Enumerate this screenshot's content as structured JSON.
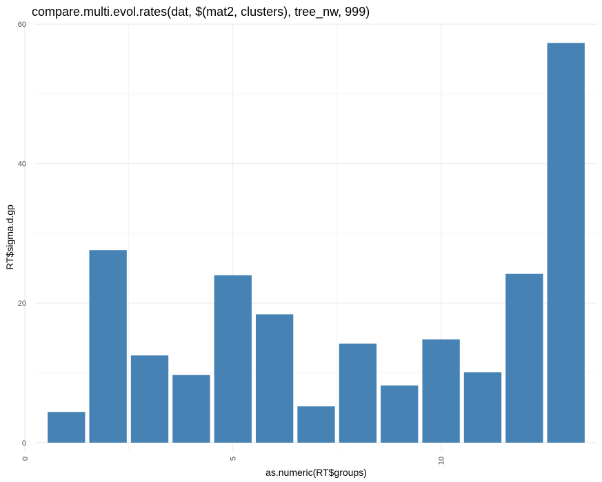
{
  "chart_data": {
    "type": "bar",
    "title": "compare.multi.evol.rates(dat, $(mat2, clusters), tree_nw, 999)",
    "xlabel": "as.numeric(RT$groups)",
    "ylabel": "RT$sigma.d.gp",
    "x": [
      1,
      2,
      3,
      4,
      5,
      6,
      7,
      8,
      9,
      10,
      11,
      12,
      13
    ],
    "values": [
      4.4,
      27.6,
      12.5,
      9.7,
      24.0,
      18.4,
      5.2,
      14.2,
      8.2,
      14.8,
      10.1,
      24.2,
      57.3
    ],
    "xlim": [
      0.25,
      13.75
    ],
    "ylim": [
      -1.2,
      60.1
    ],
    "x_ticks": [
      0,
      5,
      10
    ],
    "y_ticks": [
      0,
      20,
      40,
      60
    ],
    "grid": true,
    "bar_color": "#4682B4",
    "grid_color": "#EBEBEB"
  }
}
